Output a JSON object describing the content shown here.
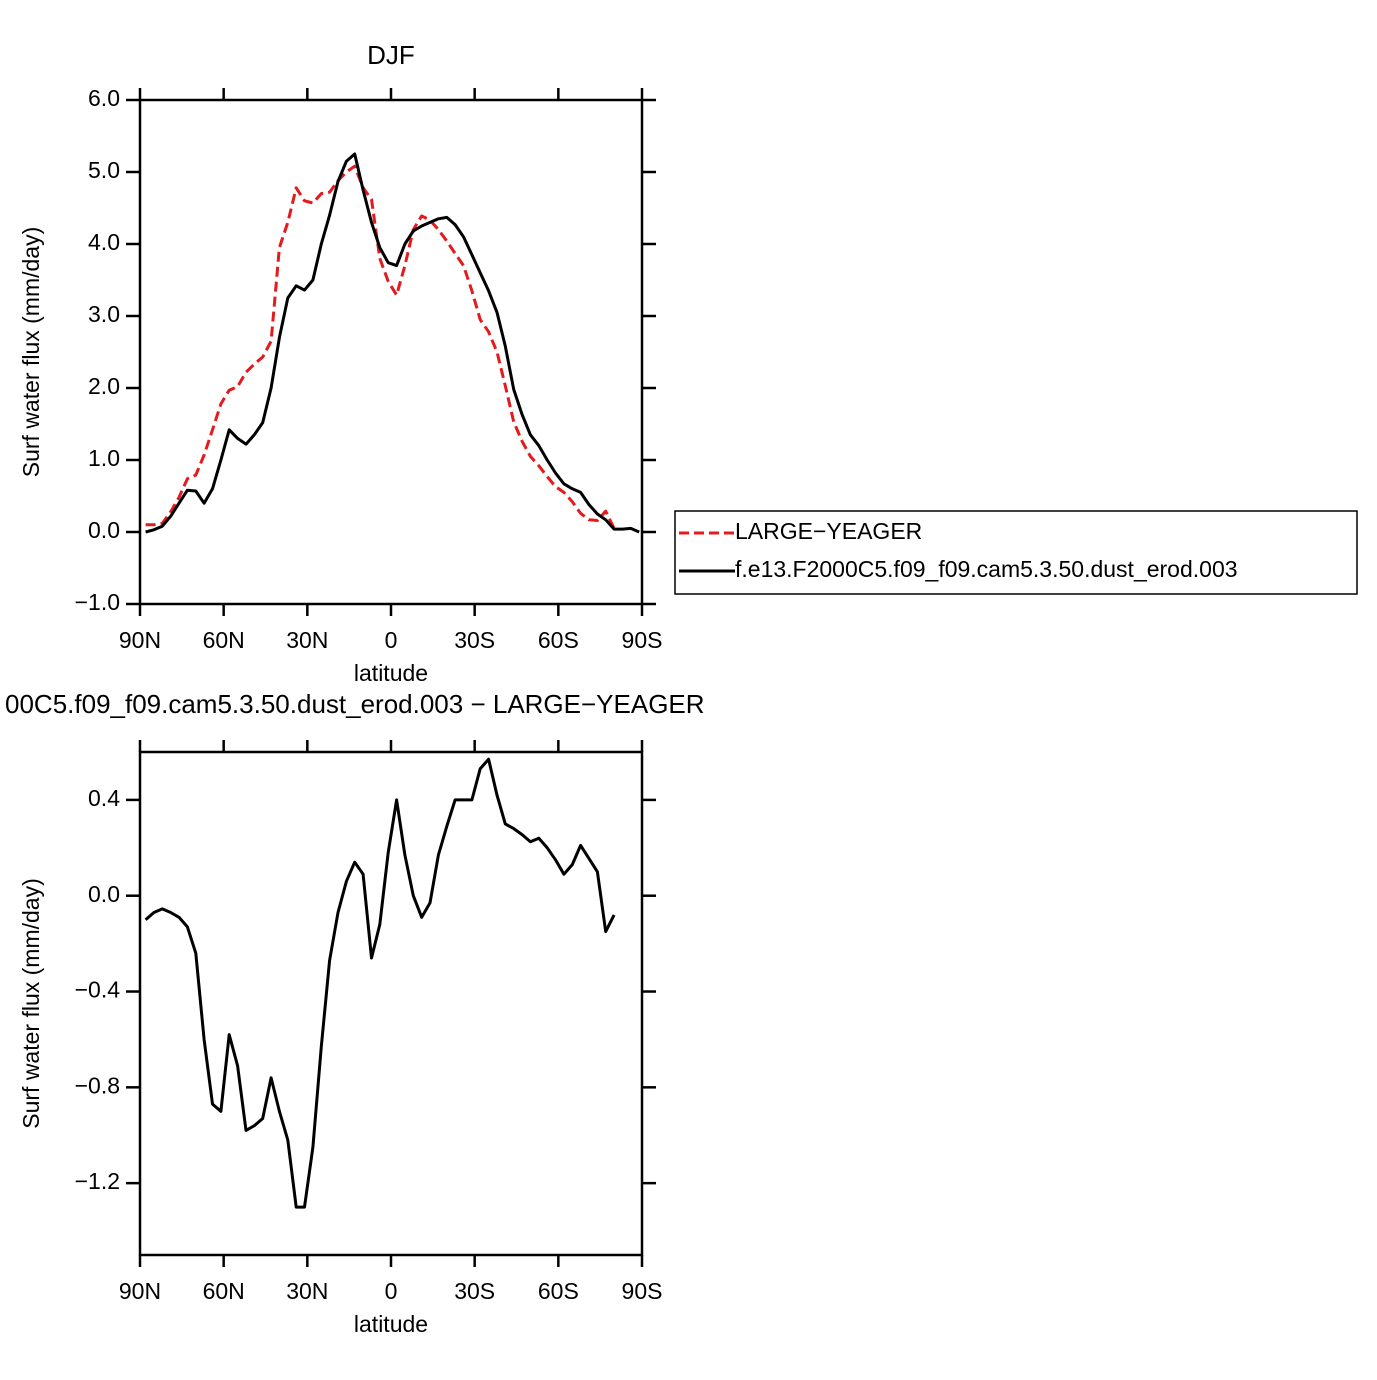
{
  "chart_data": [
    {
      "type": "line",
      "title": "DJF",
      "xlabel": "latitude",
      "ylabel": "Surf water flux (mm/day)",
      "xlim": [
        90,
        -90
      ],
      "xticks": [
        {
          "value": 90,
          "label": "90N"
        },
        {
          "value": 60,
          "label": "60N"
        },
        {
          "value": 30,
          "label": "30N"
        },
        0,
        {
          "value": -30,
          "label": "30S"
        },
        {
          "value": -60,
          "label": "60S"
        },
        {
          "value": -90,
          "label": "90S"
        }
      ],
      "ylim": [
        -1,
        6
      ],
      "yticks": [
        {
          "value": -1,
          "label": "−1.0"
        },
        {
          "value": 0,
          "label": "0.0"
        },
        {
          "value": 1,
          "label": "1.0"
        },
        {
          "value": 2,
          "label": "2.0"
        },
        {
          "value": 3,
          "label": "3.0"
        },
        {
          "value": 4,
          "label": "4.0"
        },
        {
          "value": 5,
          "label": "5.0"
        },
        {
          "value": 6,
          "label": "6.0"
        }
      ],
      "legend": "right",
      "x": [
        88,
        85,
        82,
        79,
        76,
        73,
        70,
        67,
        64,
        61,
        58,
        55,
        52,
        49,
        46,
        43,
        40,
        37,
        34,
        31,
        28,
        25,
        22,
        19,
        16,
        13,
        10,
        7,
        4,
        1,
        -2,
        -5,
        -8,
        -11,
        -14,
        -17,
        -20,
        -23,
        -26,
        -29,
        -32,
        -35,
        -38,
        -41,
        -44,
        -47,
        -50,
        -53,
        -56,
        -59,
        -62,
        -65,
        -68,
        -71,
        -74,
        -77,
        -80,
        -83,
        -86,
        -89
      ],
      "series": [
        {
          "name": "LARGE−YEAGER",
          "color": "#e41a1c",
          "line_style": "dashed",
          "values": [
            0.1,
            0.1,
            0.12,
            0.28,
            0.48,
            0.74,
            0.79,
            1.07,
            1.42,
            1.78,
            1.97,
            2.02,
            2.22,
            2.33,
            2.43,
            2.65,
            3.95,
            4.3,
            4.78,
            4.6,
            4.57,
            4.7,
            4.72,
            4.88,
            5.0,
            5.08,
            4.78,
            4.62,
            3.8,
            3.48,
            3.29,
            3.7,
            4.2,
            4.39,
            4.33,
            4.2,
            4.04,
            3.87,
            3.7,
            3.35,
            2.95,
            2.78,
            2.5,
            2.03,
            1.53,
            1.26,
            1.05,
            0.92,
            0.77,
            0.63,
            0.55,
            0.42,
            0.26,
            0.17,
            0.16,
            0.29,
            0.05,
            null,
            null,
            null
          ]
        },
        {
          "name": "f.e13.F2000C5.f09_f09.cam5.3.50.dust_erod.003",
          "color": "#000000",
          "line_style": "solid",
          "values": [
            0.0,
            0.03,
            0.08,
            0.22,
            0.4,
            0.58,
            0.57,
            0.4,
            0.6,
            1.0,
            1.42,
            1.3,
            1.22,
            1.35,
            1.52,
            2.0,
            2.7,
            3.25,
            3.42,
            3.36,
            3.5,
            4.0,
            4.4,
            4.87,
            5.15,
            5.25,
            4.75,
            4.3,
            3.95,
            3.74,
            3.7,
            4.0,
            4.18,
            4.25,
            4.3,
            4.35,
            4.37,
            4.27,
            4.1,
            3.85,
            3.6,
            3.35,
            3.05,
            2.58,
            1.98,
            1.63,
            1.35,
            1.2,
            1.0,
            0.82,
            0.67,
            0.6,
            0.55,
            0.38,
            0.25,
            0.17,
            0.04,
            0.04,
            0.05,
            0.0
          ]
        }
      ]
    },
    {
      "type": "line",
      "title": "00C5.f09_f09.cam5.3.50.dust_erod.003 − LARGE−YEAGER",
      "xlabel": "latitude",
      "ylabel": "Surf water flux (mm/day)",
      "xlim": [
        90,
        -90
      ],
      "xticks": [
        {
          "value": 90,
          "label": "90N"
        },
        {
          "value": 60,
          "label": "60N"
        },
        {
          "value": 30,
          "label": "30N"
        },
        0,
        {
          "value": -30,
          "label": "30S"
        },
        {
          "value": -60,
          "label": "60S"
        },
        {
          "value": -90,
          "label": "90S"
        }
      ],
      "ylim": [
        -1.5,
        0.6
      ],
      "yticks": [
        {
          "value": -1.2,
          "label": "−1.2"
        },
        {
          "value": -0.8,
          "label": "−0.8"
        },
        {
          "value": -0.4,
          "label": "−0.4"
        },
        {
          "value": 0,
          "label": "0.0"
        },
        0.4
      ],
      "x": [
        88,
        85,
        82,
        79,
        76,
        73,
        70,
        67,
        64,
        61,
        58,
        55,
        52,
        49,
        46,
        43,
        40,
        37,
        34,
        31,
        28,
        25,
        22,
        19,
        16,
        13,
        10,
        7,
        4,
        1,
        -2,
        -5,
        -8,
        -11,
        -14,
        -17,
        -20,
        -23,
        -26,
        -29,
        -32,
        -35,
        -38,
        -41,
        -44,
        -47,
        -50,
        -53,
        -56,
        -59,
        -62,
        -65,
        -68,
        -71,
        -74,
        -77,
        -80,
        -83,
        -86,
        -89
      ],
      "series": [
        {
          "color": "#000000",
          "line_style": "solid",
          "values": [
            -0.1,
            -0.07,
            -0.055,
            -0.07,
            -0.09,
            -0.13,
            -0.24,
            -0.6,
            -0.87,
            -0.9,
            -0.58,
            -0.71,
            -0.98,
            -0.96,
            -0.93,
            -0.76,
            -0.9,
            -1.02,
            -1.3,
            -1.3,
            -1.05,
            -0.63,
            -0.27,
            -0.07,
            0.06,
            0.14,
            0.09,
            -0.26,
            -0.12,
            0.18,
            0.4,
            0.17,
            0.0,
            -0.09,
            -0.03,
            0.17,
            0.29,
            0.4,
            0.4,
            0.4,
            0.53,
            0.57,
            0.42,
            0.3,
            0.28,
            0.255,
            0.225,
            0.24,
            0.2,
            0.15,
            0.09,
            0.13,
            0.21,
            0.155,
            0.1,
            -0.15,
            -0.08,
            null,
            null,
            null
          ]
        }
      ]
    }
  ]
}
